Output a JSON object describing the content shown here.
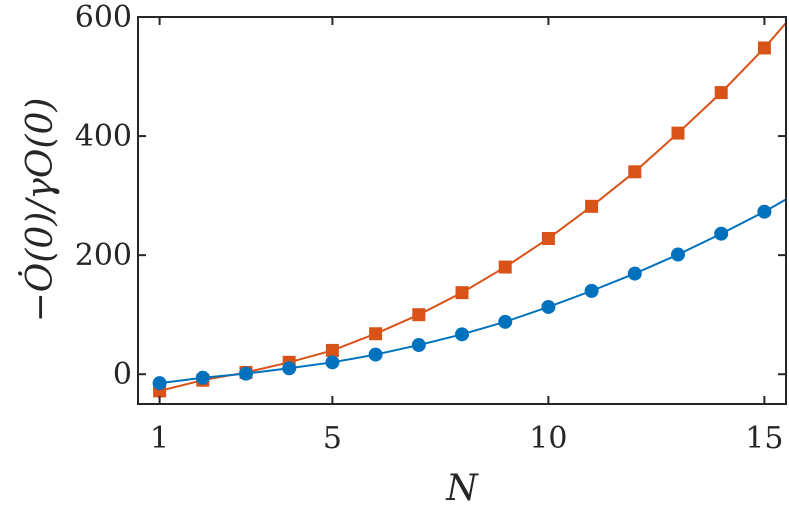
{
  "chart_data": {
    "type": "line",
    "title": "",
    "xlabel": "N",
    "ylabel": "−Ȯ(0)/γO(0)",
    "xlim": [
      0.5,
      15.5
    ],
    "ylim": [
      -50,
      600
    ],
    "x_ticks": [
      1,
      5,
      10,
      15
    ],
    "y_ticks": [
      0,
      200,
      400,
      600
    ],
    "grid": false,
    "legend": "none",
    "series": [
      {
        "marker": "square",
        "color": "#D95319",
        "x": [
          1,
          2,
          3,
          4,
          5,
          6,
          7,
          8,
          9,
          10,
          11,
          12,
          13,
          14,
          15
        ],
        "y": [
          -28,
          -10,
          3,
          20,
          40,
          68,
          100,
          137,
          180,
          228,
          282,
          340,
          405,
          473,
          548
        ]
      },
      {
        "marker": "circle",
        "color": "#0072BD",
        "x": [
          1,
          2,
          3,
          4,
          5,
          6,
          7,
          8,
          9,
          10,
          11,
          12,
          13,
          14,
          15
        ],
        "y": [
          -15,
          -6,
          1,
          10,
          20,
          33,
          49,
          67,
          88,
          113,
          140,
          169,
          201,
          236,
          273
        ]
      }
    ]
  }
}
